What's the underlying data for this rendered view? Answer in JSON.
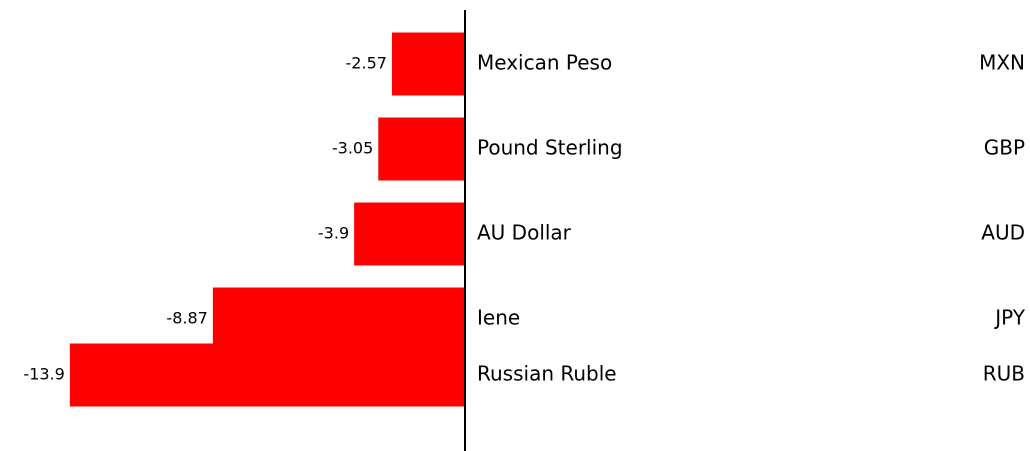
{
  "chart_data": {
    "type": "bar",
    "orientation": "horizontal",
    "categories": [
      "Mexican Peso",
      "Pound Sterling",
      "AU Dollar",
      "Iene",
      "Russian Ruble"
    ],
    "codes": [
      "MXN",
      "GBP",
      "AUD",
      "JPY",
      "RUB"
    ],
    "values": [
      -2.57,
      -3.05,
      -3.9,
      -8.87,
      -13.9
    ],
    "color": "#ff0000",
    "xlim": [
      -14,
      0
    ]
  }
}
